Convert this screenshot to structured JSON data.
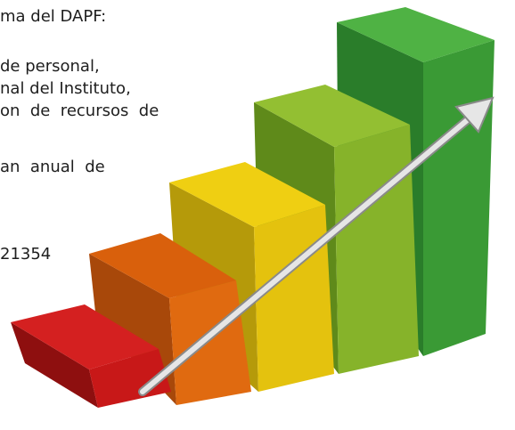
{
  "text": {
    "lines": [
      "ma del DAPF:",
      "de personal,",
      "nal del Instituto,",
      "on  de  recursos  de",
      "an  anual  de",
      "21354"
    ]
  }
}
